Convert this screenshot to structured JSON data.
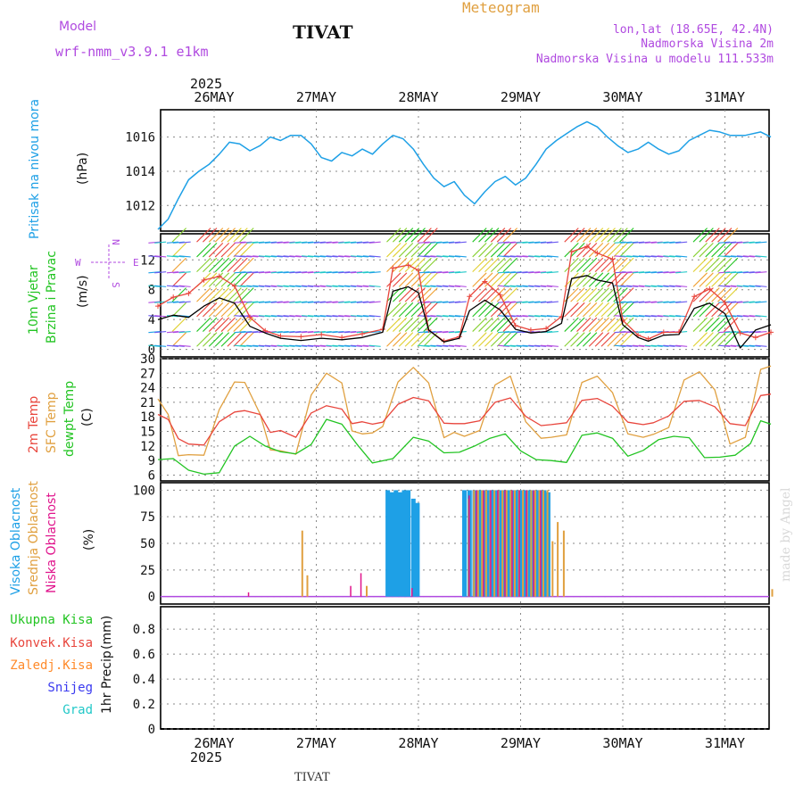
{
  "header": {
    "model_label": "Model",
    "model_name": "wrf-nmm_v3.9.1 e1km",
    "station": "TIVAT",
    "product": "Meteogram",
    "lonlat": "lon,lat (18.65E, 42.4N)",
    "altitude": "Nadmorska Visina 2m",
    "model_altitude": "Nadmorska Visina u modelu 111.533m",
    "watermark": "made by Angel",
    "footer_station": "TIVAT"
  },
  "time_axis": {
    "year": "2025",
    "days": [
      "26MAY",
      "27MAY",
      "28MAY",
      "29MAY",
      "30MAY",
      "31MAY"
    ]
  },
  "colors": {
    "pressure": "#1ea0e6",
    "t2m": "#e8453c",
    "tsfc": "#e0a040",
    "dewpoint": "#22c422",
    "high_cloud": "#1ea0e6",
    "mid_cloud": "#e0a040",
    "low_cloud": "#e0148c",
    "wind_speed": "#000000",
    "gust": "#e8453c",
    "legend_purple": "#b04ae0"
  },
  "chart_data": [
    {
      "type": "line",
      "panel": "pressure",
      "ylabel_name": "Pritisak na nivou mora",
      "unit": "(hPa)",
      "yticks": [
        "1012",
        "1014",
        "1016"
      ],
      "ylim": [
        1010.5,
        1017.6
      ],
      "series": [
        {
          "x": [
            0,
            0.1,
            0.2,
            0.3,
            0.4,
            0.5,
            0.6,
            0.7,
            0.8,
            0.9,
            1.0,
            1.1,
            1.2,
            1.3,
            1.4,
            1.5,
            1.6,
            1.7,
            1.8,
            1.9,
            2.0,
            2.1,
            2.2,
            2.3,
            2.4,
            2.5,
            2.6,
            2.7,
            2.8,
            2.9,
            3.0,
            3.1,
            3.2,
            3.3,
            3.4,
            3.5,
            3.6,
            3.7,
            3.8,
            3.9,
            4.0,
            4.1,
            4.2,
            4.3,
            4.4,
            4.5,
            4.6,
            4.7,
            4.8,
            4.9,
            5.0,
            5.1,
            5.2,
            5.3,
            5.4,
            5.5,
            5.6,
            5.75,
            5.9,
            6.0
          ],
          "y": [
            1010.6,
            1011.2,
            1012.4,
            1013.5,
            1014.0,
            1014.4,
            1015.0,
            1015.7,
            1015.6,
            1015.2,
            1015.5,
            1016.0,
            1015.8,
            1016.1,
            1016.1,
            1015.6,
            1014.8,
            1014.6,
            1015.1,
            1014.9,
            1015.3,
            1015.0,
            1015.6,
            1016.1,
            1015.9,
            1015.3,
            1014.4,
            1013.6,
            1013.1,
            1013.4,
            1012.6,
            1012.1,
            1012.8,
            1013.4,
            1013.7,
            1013.2,
            1013.6,
            1014.4,
            1015.3,
            1015.8,
            1016.2,
            1016.6,
            1016.9,
            1016.6,
            1016.0,
            1015.5,
            1015.1,
            1015.3,
            1015.7,
            1015.3,
            1015.0,
            1015.2,
            1015.8,
            1016.1,
            1016.4,
            1016.3,
            1016.1,
            1016.1,
            1016.3,
            1016.0
          ]
        }
      ]
    },
    {
      "type": "line",
      "panel": "wind",
      "ylabel_name_1": "10m Vjetar",
      "ylabel_name_2": "Brzina i Pravac",
      "unit": "(m/s)",
      "compass": {
        "north": "N",
        "south": "S",
        "east": "E",
        "west": "W"
      },
      "yticks": [
        "0",
        "4",
        "8",
        "12"
      ],
      "ylim": [
        -1,
        15.5
      ],
      "series": [
        {
          "name": "speed",
          "x": [
            0,
            0.15,
            0.3,
            0.45,
            0.6,
            0.75,
            0.9,
            1.05,
            1.2,
            1.4,
            1.6,
            1.8,
            2.0,
            2.2,
            2.3,
            2.45,
            2.55,
            2.65,
            2.8,
            2.95,
            3.05,
            3.2,
            3.35,
            3.5,
            3.65,
            3.8,
            3.95,
            4.05,
            4.2,
            4.3,
            4.45,
            4.55,
            4.7,
            4.8,
            4.95,
            5.1,
            5.25,
            5.4,
            5.55,
            5.7,
            5.85,
            6.0
          ],
          "y": [
            4,
            4.6,
            4.3,
            5.8,
            6.9,
            6.2,
            3.1,
            2.2,
            1.5,
            1.2,
            1.5,
            1.3,
            1.6,
            2.3,
            7.8,
            8.4,
            7.6,
            2.6,
            1.0,
            1.5,
            5.2,
            6.6,
            5.3,
            2.7,
            2.2,
            2.4,
            3.5,
            9.5,
            9.9,
            9.3,
            8.9,
            3.3,
            1.6,
            1.1,
            1.9,
            2.0,
            5.5,
            6.2,
            4.8,
            0.2,
            2.6,
            3.3
          ]
        },
        {
          "name": "gust",
          "x": [
            0,
            0.15,
            0.3,
            0.45,
            0.6,
            0.75,
            0.9,
            1.05,
            1.2,
            1.4,
            1.6,
            1.8,
            2.0,
            2.2,
            2.3,
            2.45,
            2.55,
            2.65,
            2.8,
            2.95,
            3.05,
            3.2,
            3.35,
            3.5,
            3.65,
            3.8,
            3.95,
            4.05,
            4.2,
            4.3,
            4.45,
            4.55,
            4.7,
            4.8,
            4.95,
            5.1,
            5.25,
            5.4,
            5.55,
            5.7,
            5.85,
            6.0
          ],
          "y": [
            5.8,
            7.0,
            7.5,
            9.3,
            9.8,
            8.5,
            4.3,
            2.5,
            1.8,
            1.7,
            2.0,
            1.6,
            2.1,
            2.7,
            10.9,
            11.3,
            10.6,
            2.6,
            1.1,
            1.7,
            7.1,
            9.1,
            7.3,
            3.2,
            2.6,
            2.8,
            4.4,
            13.1,
            13.8,
            12.9,
            12.1,
            3.9,
            1.9,
            1.4,
            2.3,
            2.3,
            7.1,
            8.1,
            6.3,
            2.2,
            1.6,
            2.3
          ]
        }
      ]
    },
    {
      "type": "line",
      "panel": "temperature",
      "ylabel_name_1": "2m Temp",
      "ylabel_name_2": "SFC Temp",
      "ylabel_name_3": "dewpt Temp",
      "unit": "(C)",
      "yticks": [
        "6",
        "9",
        "12",
        "15",
        "18",
        "21",
        "24",
        "27",
        "30"
      ],
      "ylim": [
        4.8,
        30
      ],
      "series": [
        {
          "name": "2m",
          "x": [
            0,
            0.1,
            0.2,
            0.3,
            0.45,
            0.6,
            0.75,
            0.85,
            1.0,
            1.1,
            1.2,
            1.35,
            1.5,
            1.65,
            1.8,
            1.9,
            2.0,
            2.1,
            2.2,
            2.35,
            2.5,
            2.65,
            2.8,
            2.9,
            3.0,
            3.15,
            3.3,
            3.45,
            3.6,
            3.75,
            3.85,
            4.0,
            4.15,
            4.3,
            4.45,
            4.6,
            4.75,
            4.85,
            5.0,
            5.15,
            5.3,
            5.45,
            5.6,
            5.75,
            5.9,
            6.0
          ],
          "y": [
            18.5,
            17.5,
            13.5,
            12.4,
            12.2,
            17.0,
            19.0,
            19.3,
            18.5,
            14.8,
            15.2,
            13.8,
            18.8,
            20.3,
            19.6,
            16.6,
            17.0,
            16.5,
            16.9,
            20.6,
            22.0,
            21.3,
            16.7,
            16.6,
            16.6,
            17.2,
            21.0,
            21.9,
            18.1,
            16.2,
            16.4,
            16.8,
            21.4,
            21.8,
            20.2,
            16.9,
            16.4,
            16.8,
            18.2,
            21.2,
            21.4,
            20.1,
            16.6,
            16.2,
            22.4,
            22.7
          ]
        },
        {
          "name": "sfc",
          "x": [
            0,
            0.1,
            0.2,
            0.3,
            0.45,
            0.6,
            0.75,
            0.85,
            1.0,
            1.1,
            1.2,
            1.35,
            1.5,
            1.65,
            1.8,
            1.9,
            2.0,
            2.1,
            2.2,
            2.35,
            2.5,
            2.65,
            2.8,
            2.9,
            3.0,
            3.15,
            3.3,
            3.45,
            3.6,
            3.75,
            3.85,
            4.0,
            4.15,
            4.3,
            4.45,
            4.6,
            4.75,
            4.85,
            5.0,
            5.15,
            5.3,
            5.45,
            5.6,
            5.75,
            5.9,
            6.0
          ],
          "y": [
            21.7,
            18.5,
            10.0,
            10.2,
            10.1,
            19.5,
            25.2,
            25.1,
            18.6,
            11.2,
            11.0,
            10.3,
            22.5,
            27.0,
            25.0,
            15.1,
            14.5,
            14.7,
            16.0,
            25.2,
            28.2,
            25.0,
            13.7,
            14.8,
            14.0,
            15.2,
            24.6,
            26.4,
            17.0,
            13.6,
            13.8,
            14.3,
            25.1,
            26.4,
            23.0,
            14.5,
            13.8,
            14.4,
            15.8,
            25.6,
            27.3,
            23.6,
            12.4,
            13.8,
            27.8,
            28.5
          ]
        },
        {
          "name": "dewpt",
          "x": [
            0,
            0.15,
            0.3,
            0.45,
            0.6,
            0.75,
            0.9,
            1.05,
            1.2,
            1.35,
            1.5,
            1.65,
            1.8,
            1.95,
            2.1,
            2.3,
            2.5,
            2.65,
            2.8,
            2.95,
            3.1,
            3.25,
            3.4,
            3.55,
            3.7,
            3.85,
            4.0,
            4.15,
            4.3,
            4.45,
            4.6,
            4.75,
            4.9,
            5.05,
            5.2,
            5.35,
            5.5,
            5.65,
            5.8,
            5.9,
            6.0
          ],
          "y": [
            9.2,
            9.4,
            7.0,
            6.2,
            6.5,
            12.0,
            14.0,
            12.0,
            10.8,
            10.4,
            12.3,
            17.5,
            16.5,
            12.3,
            8.5,
            9.4,
            13.8,
            13.0,
            10.6,
            10.7,
            12.0,
            13.6,
            14.5,
            11.0,
            9.2,
            9.0,
            8.6,
            14.2,
            14.7,
            13.6,
            9.9,
            11.1,
            13.3,
            14.0,
            13.7,
            9.6,
            9.7,
            10.1,
            12.5,
            17.2,
            16.5
          ]
        }
      ]
    },
    {
      "type": "bar",
      "panel": "cloud",
      "ylabel_name_1": "Visoka Oblacnost",
      "ylabel_name_2": "Srednja Oblacnost",
      "ylabel_name_3": "Niska Oblacnost",
      "unit": "(%)",
      "yticks": [
        "0",
        "25",
        "50",
        "75",
        "100"
      ],
      "ylim": [
        -7,
        107
      ],
      "series": [
        {
          "name": "high",
          "x": [
            2.25,
            2.29,
            2.33,
            2.37,
            2.41,
            2.45,
            2.5,
            2.54,
            3.0,
            3.05,
            3.1,
            3.14,
            3.18,
            3.22,
            3.26,
            3.3,
            3.34,
            3.38,
            3.42,
            3.46,
            3.5,
            3.54,
            3.58,
            3.62,
            3.66,
            3.7,
            3.74,
            3.78,
            3.82
          ],
          "y": [
            100,
            98,
            100,
            98,
            100,
            100,
            92,
            88,
            100,
            100,
            100,
            100,
            100,
            100,
            100,
            100,
            100,
            100,
            100,
            100,
            100,
            100,
            100,
            100,
            100,
            100,
            100,
            100,
            98
          ]
        },
        {
          "name": "mid",
          "x": [
            1.4,
            1.45,
            2.03,
            3.03,
            3.08,
            3.12,
            3.16,
            3.2,
            3.24,
            3.28,
            3.32,
            3.36,
            3.4,
            3.44,
            3.48,
            3.52,
            3.56,
            3.6,
            3.64,
            3.68,
            3.72,
            3.76,
            3.8,
            3.85,
            3.9,
            3.96,
            6.0
          ],
          "y": [
            62,
            20,
            10,
            92,
            100,
            100,
            100,
            100,
            100,
            100,
            100,
            100,
            100,
            100,
            100,
            100,
            100,
            100,
            100,
            100,
            100,
            100,
            100,
            52,
            70,
            62,
            7
          ]
        },
        {
          "name": "low",
          "x": [
            0.9,
            1.9,
            2.0,
            2.5,
            3.06,
            3.13,
            3.2,
            3.27,
            3.34,
            3.41,
            3.48,
            3.55,
            3.62,
            3.69,
            3.76
          ],
          "y": [
            4,
            10,
            22,
            8,
            95,
            100,
            100,
            100,
            100,
            100,
            100,
            100,
            100,
            100,
            100
          ]
        }
      ]
    },
    {
      "type": "bar",
      "panel": "precipitation",
      "legend": [
        "Ukupna Kisa",
        "Konvek.Kisa",
        "Zaledj.Kisa",
        "Snijeg",
        "Grad"
      ],
      "legend_colors": [
        "#22c422",
        "#e8453c",
        "#ff8a2a",
        "#3a3af0",
        "#22c8c8"
      ],
      "ylabel_name": "1hr Precip",
      "unit": "(mm)",
      "yticks": [
        "0",
        "0.2",
        "0.4",
        "0.6",
        "0.8"
      ],
      "ylim": [
        0,
        0.98
      ],
      "series": [
        {
          "name": "Ukupna Kisa",
          "x": [
            2.0
          ],
          "y": [
            0.0
          ]
        }
      ]
    }
  ]
}
